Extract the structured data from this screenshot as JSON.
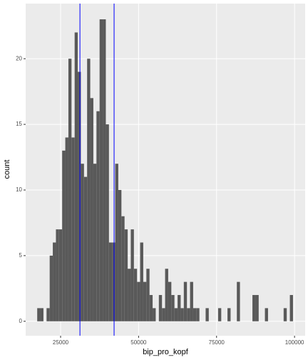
{
  "chart_data": {
    "type": "histogram",
    "x_label": "bip_pro_kopf",
    "y_label": "count",
    "bins": [
      17500,
      18500,
      19500,
      20500,
      21500,
      22500,
      23500,
      24500,
      25500,
      26500,
      27500,
      28500,
      29500,
      30500,
      31500,
      32500,
      33500,
      34500,
      35500,
      36500,
      37500,
      38500,
      39500,
      40500,
      41500,
      42500,
      43500,
      44500,
      45500,
      46500,
      47500,
      48500,
      49500,
      50500,
      51500,
      52500,
      53500,
      54500,
      55500,
      56500,
      57500,
      58500,
      59500,
      60500,
      61500,
      62500,
      63500,
      64500,
      65500,
      66500,
      67500,
      68500,
      69500,
      70500,
      71500,
      72500,
      73500,
      74500,
      75500,
      76500,
      77500,
      78500,
      79500,
      80500,
      81500,
      82500,
      83500,
      84500,
      85500,
      86500,
      87500,
      88500,
      89500,
      90500,
      91500,
      92500,
      93500,
      94500,
      95500,
      96500,
      97500,
      98500,
      99500
    ],
    "counts": [
      1,
      1,
      0,
      1,
      5,
      6,
      7,
      7,
      13,
      14,
      20,
      14,
      22,
      19,
      12,
      11,
      20,
      17,
      12,
      16,
      23,
      23,
      15,
      6,
      6,
      12,
      10,
      8,
      7,
      4,
      7,
      4,
      3,
      6,
      3,
      4,
      2,
      1,
      0,
      2,
      1,
      4,
      3,
      2,
      1,
      2,
      1,
      3,
      1,
      3,
      1,
      1,
      0,
      0,
      1,
      0,
      0,
      0,
      1,
      0,
      0,
      1,
      0,
      0,
      3,
      0,
      0,
      0,
      0,
      2,
      2,
      0,
      0,
      1,
      0,
      0,
      0,
      0,
      0,
      1,
      0,
      2
    ],
    "color": "#595959",
    "vlines": [
      31200,
      42150
    ],
    "vline_color": "#0000ff",
    "xlim": [
      13800,
      103400
    ],
    "ylim": [
      -1.1,
      24.2
    ],
    "xticks": [
      25000,
      50000,
      75000,
      100000
    ],
    "yticks": [
      0,
      5,
      10,
      15,
      20
    ],
    "grid": true
  }
}
